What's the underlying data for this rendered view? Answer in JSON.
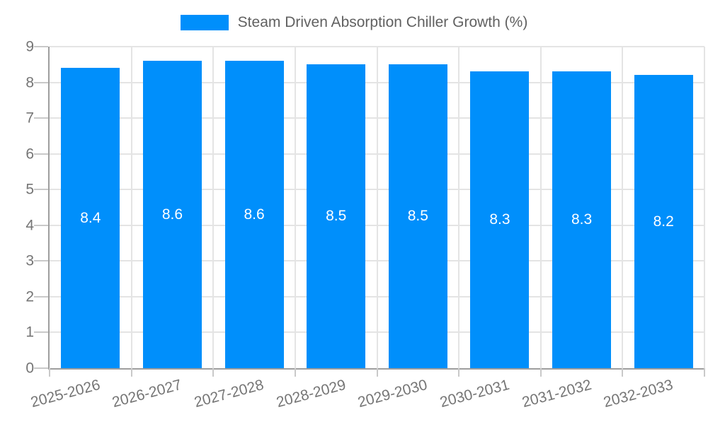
{
  "legend": {
    "label": "Steam Driven Absorption Chiller Growth (%)"
  },
  "chart_data": {
    "type": "bar",
    "title": "Steam Driven Absorption Chiller Growth (%)",
    "series_name": "Steam Driven Absorption Chiller Growth (%)",
    "categories": [
      "2025-2026",
      "2026-2027",
      "2027-2028",
      "2028-2029",
      "2029-2030",
      "2030-2031",
      "2031-2032",
      "2032-2033"
    ],
    "values": [
      8.4,
      8.6,
      8.6,
      8.5,
      8.5,
      8.3,
      8.3,
      8.2
    ],
    "data_labels": [
      "8.4",
      "8.6",
      "8.6",
      "8.5",
      "8.5",
      "8.3",
      "8.3",
      "8.2"
    ],
    "xlabel": "",
    "ylabel": "",
    "ylim": [
      0,
      9
    ],
    "yticks": [
      0,
      1,
      2,
      3,
      4,
      5,
      6,
      7,
      8,
      9
    ],
    "grid": "on",
    "legend_position": "top",
    "x_label_rotation_deg": -15
  },
  "colors": {
    "bar": "#008FFB",
    "grid": "#e4e4e4",
    "axis": "#9e9e9e",
    "tick": "#c9c9c9",
    "tick_label": "#757575",
    "legend_text": "#616161",
    "data_label": "#ffffff",
    "background": "#ffffff"
  }
}
